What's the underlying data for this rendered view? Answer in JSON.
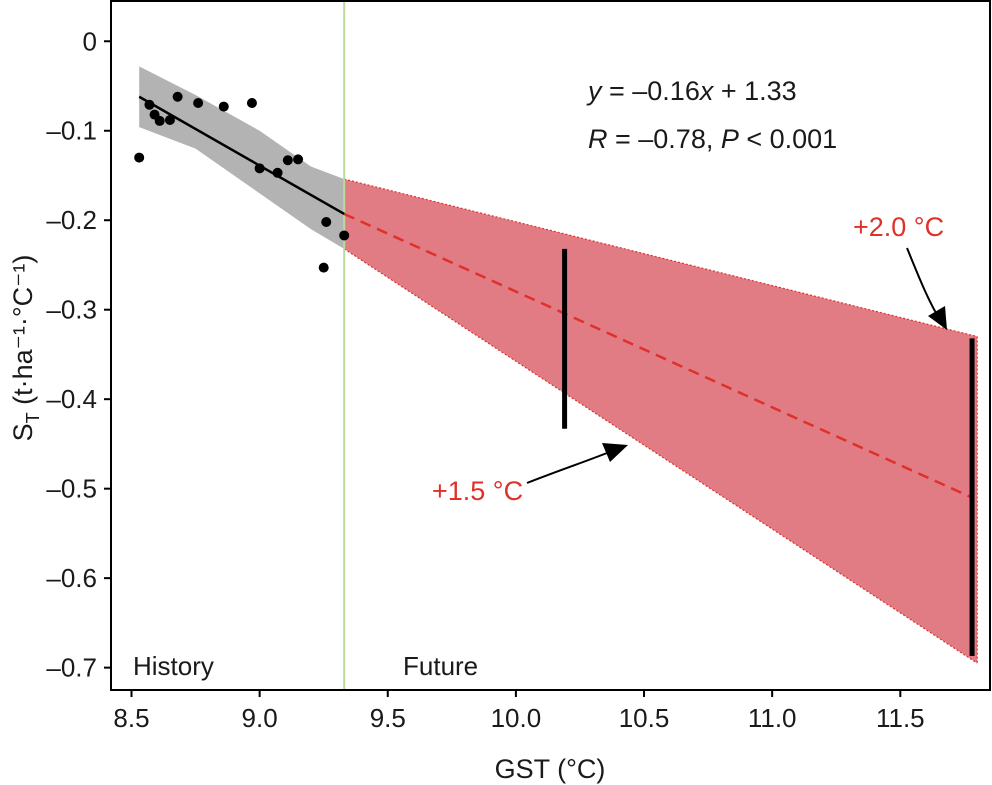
{
  "chart_data": {
    "type": "scatter",
    "xlabel": "GST (°C)",
    "ylabel": {
      "main": "S",
      "sub": "T",
      "units": " (t·ha⁻¹·°C⁻¹)"
    },
    "xlim": [
      8.42,
      11.85
    ],
    "ylim": [
      -0.725,
      0.045
    ],
    "xticks": [
      8.5,
      9.0,
      9.5,
      10.0,
      10.5,
      11.0,
      11.5
    ],
    "xtick_labels": [
      "8.5",
      "9.0",
      "9.5",
      "10.0",
      "10.5",
      "11.0",
      "11.5"
    ],
    "yticks": [
      0,
      -0.1,
      -0.2,
      -0.3,
      -0.4,
      -0.5,
      -0.6,
      -0.7
    ],
    "ytick_labels": [
      "0",
      "–0.1",
      "–0.2",
      "–0.3",
      "–0.4",
      "–0.5",
      "–0.6",
      "–0.7"
    ],
    "points": [
      {
        "x": 8.53,
        "y": -0.13
      },
      {
        "x": 8.57,
        "y": -0.071
      },
      {
        "x": 8.59,
        "y": -0.082
      },
      {
        "x": 8.61,
        "y": -0.089
      },
      {
        "x": 8.65,
        "y": -0.088
      },
      {
        "x": 8.68,
        "y": -0.062
      },
      {
        "x": 8.76,
        "y": -0.069
      },
      {
        "x": 8.86,
        "y": -0.073
      },
      {
        "x": 8.97,
        "y": -0.069
      },
      {
        "x": 9.0,
        "y": -0.142
      },
      {
        "x": 9.07,
        "y": -0.147
      },
      {
        "x": 9.11,
        "y": -0.133
      },
      {
        "x": 9.15,
        "y": -0.132
      },
      {
        "x": 9.25,
        "y": -0.253
      },
      {
        "x": 9.26,
        "y": -0.202
      },
      {
        "x": 9.33,
        "y": -0.217
      }
    ],
    "fit_line": {
      "x": [
        8.53,
        9.33
      ],
      "y": [
        -0.062,
        -0.193
      ]
    },
    "confidence_band": {
      "x": [
        8.53,
        8.75,
        9.0,
        9.2,
        9.33
      ],
      "upper": [
        -0.028,
        -0.06,
        -0.1,
        -0.14,
        -0.154
      ],
      "lower": [
        -0.096,
        -0.12,
        -0.17,
        -0.21,
        -0.232
      ]
    },
    "divider_x": 9.33,
    "projection": {
      "center": {
        "x": [
          9.33,
          11.78
        ],
        "y": [
          -0.193,
          -0.51
        ]
      },
      "upper": {
        "x": [
          9.33,
          11.8
        ],
        "y": [
          -0.154,
          -0.33
        ]
      },
      "lower": {
        "x": [
          9.33,
          11.8
        ],
        "y": [
          -0.232,
          -0.695
        ]
      }
    },
    "warming_bars": [
      {
        "x": 10.19,
        "ymin": -0.433,
        "ymax": -0.232,
        "label": "+1.5 °C"
      },
      {
        "x": 11.78,
        "ymin": -0.687,
        "ymax": -0.332,
        "label": "+2.0 °C"
      }
    ],
    "equation": {
      "y": "y",
      "mid": " = –0.16",
      "x": "x",
      "rest": " + 1.33"
    },
    "stats": {
      "r": "R",
      "r_val": " = –0.78, ",
      "p": "P",
      "p_val": " < 0.001"
    },
    "region_labels": {
      "history": "History",
      "future": "Future"
    },
    "colors": {
      "points": "#000000",
      "fit_line": "#000000",
      "band": "#b3b3b3",
      "projection_fill": "#e27c84",
      "projection_line": "#e0302a",
      "divider": "#b7dc9c",
      "warming_bars": "#000000",
      "label_red": "#e0302a"
    }
  }
}
